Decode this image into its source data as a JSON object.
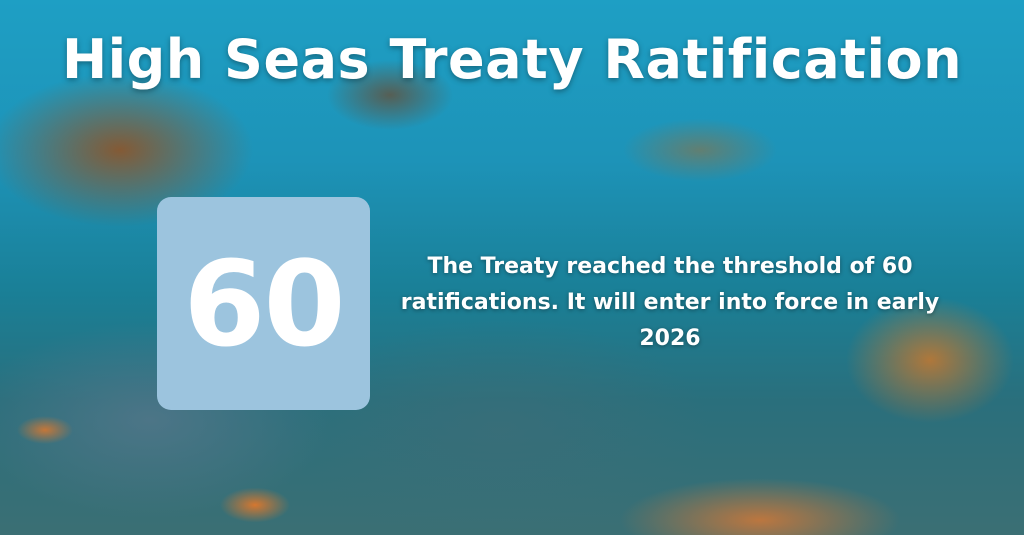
{
  "title": "High Seas Treaty Ratification",
  "stat": {
    "value": "60",
    "box_color": "#9cc4de"
  },
  "description": "The Treaty reached the threshold of 60 ratifications. It will enter into force in early 2026"
}
